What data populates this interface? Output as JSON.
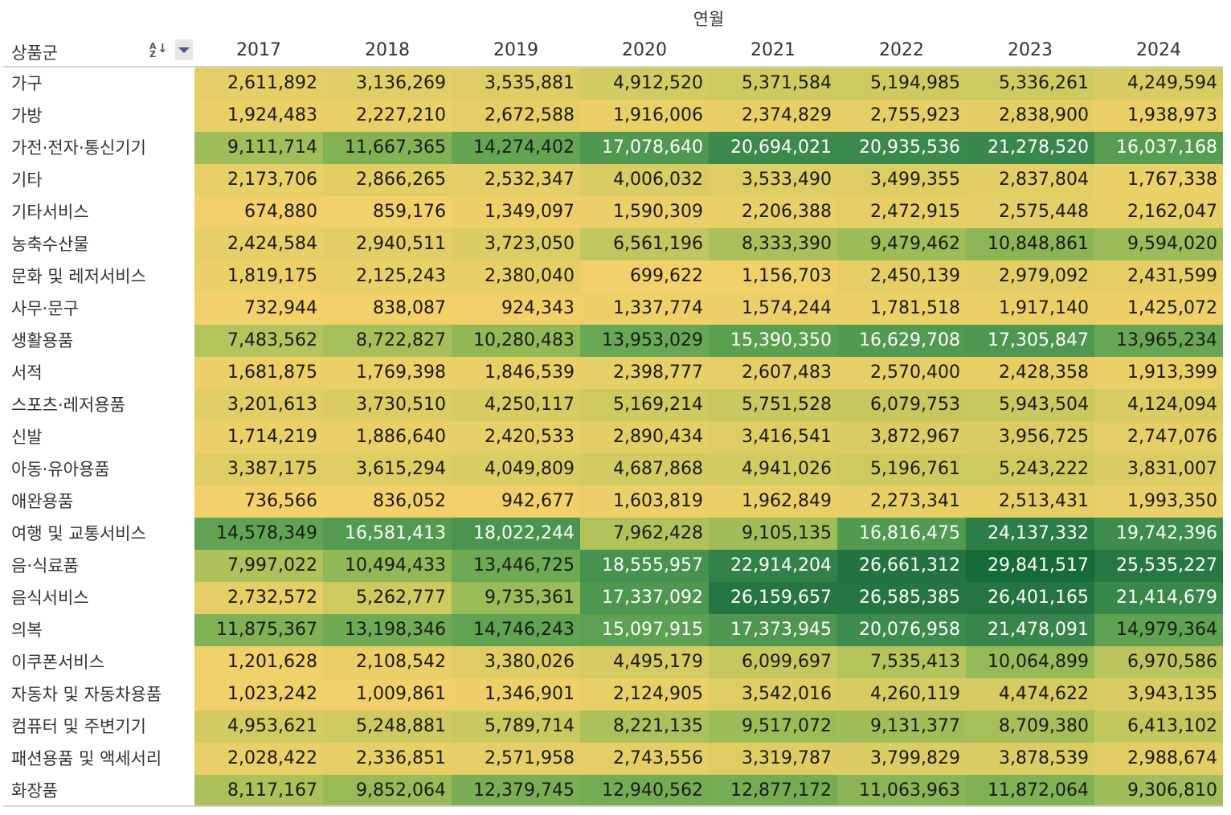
{
  "column_header_title": "연월",
  "row_header_title": "상품군",
  "icons": {
    "sort": "sort-alpha-descending-icon",
    "menu": "dropdown-menu-icon"
  },
  "sort_icon_text": {
    "az": "A\nZ",
    "arrow": "↓"
  },
  "colors": {
    "low": "#f3d06a",
    "mid1": "#c8c95f",
    "mid2": "#8cb856",
    "high": "#176b38"
  },
  "chart_data": {
    "type": "heatmap",
    "title": "",
    "xlabel": "연월",
    "ylabel": "상품군",
    "x": [
      "2017",
      "2018",
      "2019",
      "2020",
      "2021",
      "2022",
      "2023",
      "2024"
    ],
    "rows": [
      {
        "label": "가구",
        "values": [
          2611892,
          3136269,
          3535881,
          4912520,
          5371584,
          5194985,
          5336261,
          4249594
        ]
      },
      {
        "label": "가방",
        "values": [
          1924483,
          2227210,
          2672588,
          1916006,
          2374829,
          2755923,
          2838900,
          1938973
        ]
      },
      {
        "label": "가전·전자·통신기기",
        "values": [
          9111714,
          11667365,
          14274402,
          17078640,
          20694021,
          20935536,
          21278520,
          16037168
        ]
      },
      {
        "label": "기타",
        "values": [
          2173706,
          2866265,
          2532347,
          4006032,
          3533490,
          3499355,
          2837804,
          1767338
        ]
      },
      {
        "label": "기타서비스",
        "values": [
          674880,
          859176,
          1349097,
          1590309,
          2206388,
          2472915,
          2575448,
          2162047
        ]
      },
      {
        "label": "농축수산물",
        "values": [
          2424584,
          2940511,
          3723050,
          6561196,
          8333390,
          9479462,
          10848861,
          9594020
        ]
      },
      {
        "label": "문화 및 레저서비스",
        "values": [
          1819175,
          2125243,
          2380040,
          699622,
          1156703,
          2450139,
          2979092,
          2431599
        ]
      },
      {
        "label": "사무·문구",
        "values": [
          732944,
          838087,
          924343,
          1337774,
          1574244,
          1781518,
          1917140,
          1425072
        ]
      },
      {
        "label": "생활용품",
        "values": [
          7483562,
          8722827,
          10280483,
          13953029,
          15390350,
          16629708,
          17305847,
          13965234
        ]
      },
      {
        "label": "서적",
        "values": [
          1681875,
          1769398,
          1846539,
          2398777,
          2607483,
          2570400,
          2428358,
          1913399
        ]
      },
      {
        "label": "스포츠·레저용품",
        "values": [
          3201613,
          3730510,
          4250117,
          5169214,
          5751528,
          6079753,
          5943504,
          4124094
        ]
      },
      {
        "label": "신발",
        "values": [
          1714219,
          1886640,
          2420533,
          2890434,
          3416541,
          3872967,
          3956725,
          2747076
        ]
      },
      {
        "label": "아동·유아용품",
        "values": [
          3387175,
          3615294,
          4049809,
          4687868,
          4941026,
          5196761,
          5243222,
          3831007
        ]
      },
      {
        "label": "애완용품",
        "values": [
          736566,
          836052,
          942677,
          1603819,
          1962849,
          2273341,
          2513431,
          1993350
        ]
      },
      {
        "label": "여행 및 교통서비스",
        "values": [
          14578349,
          16581413,
          18022244,
          7962428,
          9105135,
          16816475,
          24137332,
          19742396
        ]
      },
      {
        "label": "음·식료품",
        "values": [
          7997022,
          10494433,
          13446725,
          18555957,
          22914204,
          26661312,
          29841517,
          25535227
        ]
      },
      {
        "label": "음식서비스",
        "values": [
          2732572,
          5262777,
          9735361,
          17337092,
          26159657,
          26585385,
          26401165,
          21414679
        ]
      },
      {
        "label": "의복",
        "values": [
          11875367,
          13198346,
          14746243,
          15097915,
          17373945,
          20076958,
          21478091,
          14979364
        ]
      },
      {
        "label": "이쿠폰서비스",
        "values": [
          1201628,
          2108542,
          3380026,
          4495179,
          6099697,
          7535413,
          10064899,
          6970586
        ]
      },
      {
        "label": "자동차 및 자동차용품",
        "values": [
          1023242,
          1009861,
          1346901,
          2124905,
          3542016,
          4260119,
          4474622,
          3943135
        ]
      },
      {
        "label": "컴퓨터 및 주변기기",
        "values": [
          4953621,
          5248881,
          5789714,
          8221135,
          9517072,
          9131377,
          8709380,
          6413102
        ]
      },
      {
        "label": "패션용품 및 액세서리",
        "values": [
          2028422,
          2336851,
          2571958,
          2743556,
          3319787,
          3799829,
          3878539,
          2988674
        ]
      },
      {
        "label": "화장품",
        "values": [
          8117167,
          9852064,
          12379745,
          12940562,
          12877172,
          11063963,
          11872064,
          9306810
        ]
      }
    ],
    "color_scale": {
      "min": 674880,
      "max": 29841517,
      "low_color": "#f3d06a",
      "high_color": "#176b38"
    },
    "legend": "none",
    "grid": false
  }
}
